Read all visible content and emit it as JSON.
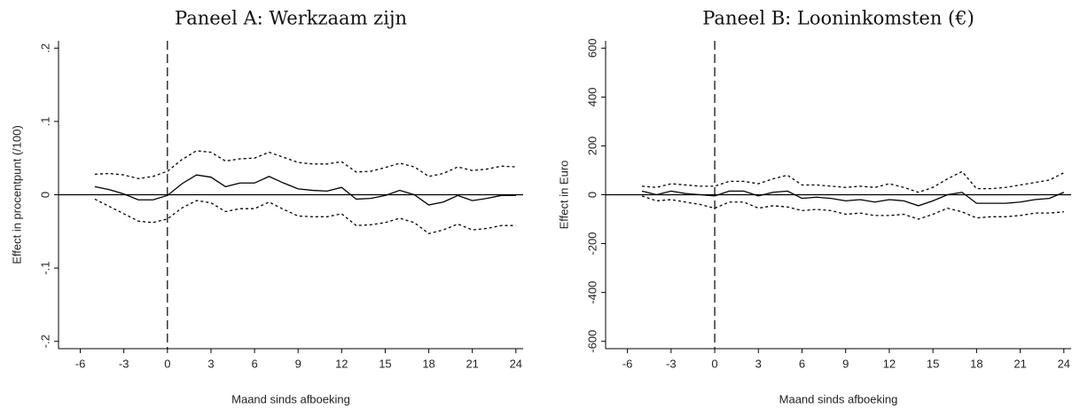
{
  "chart_data": [
    {
      "type": "line",
      "title": "Paneel A: Werkzaam zijn",
      "xlabel": "Maand sinds afboeking",
      "ylabel": "Effect in procentpunt (/100)",
      "x": [
        -5,
        -4,
        -3,
        -2,
        -1,
        0,
        1,
        2,
        3,
        4,
        5,
        6,
        7,
        8,
        9,
        10,
        11,
        12,
        13,
        14,
        15,
        16,
        17,
        18,
        19,
        20,
        21,
        22,
        23,
        24
      ],
      "series": [
        {
          "color": "#000000",
          "dash": "solid",
          "values": [
            0.011,
            0.007,
            0.001,
            -0.007,
            -0.007,
            -0.001,
            0.015,
            0.027,
            0.024,
            0.011,
            0.016,
            0.016,
            0.025,
            0.016,
            0.008,
            0.006,
            0.005,
            0.01,
            -0.006,
            -0.005,
            -0.001,
            0.006,
            0,
            -0.014,
            -0.01,
            -0.001,
            -0.008,
            -0.005,
            -0.001,
            -0.001
          ]
        },
        {
          "color": "#000000",
          "dash": "dotted",
          "values": [
            0.028,
            0.029,
            0.027,
            0.022,
            0.025,
            0.032,
            0.048,
            0.06,
            0.058,
            0.046,
            0.049,
            0.05,
            0.058,
            0.051,
            0.044,
            0.042,
            0.042,
            0.045,
            0.031,
            0.032,
            0.037,
            0.043,
            0.038,
            0.025,
            0.029,
            0.038,
            0.033,
            0.035,
            0.039,
            0.038
          ]
        },
        {
          "color": "#000000",
          "dash": "dotted",
          "values": [
            -0.006,
            -0.016,
            -0.026,
            -0.036,
            -0.038,
            -0.033,
            -0.018,
            -0.008,
            -0.011,
            -0.023,
            -0.019,
            -0.019,
            -0.01,
            -0.02,
            -0.029,
            -0.03,
            -0.03,
            -0.026,
            -0.042,
            -0.041,
            -0.038,
            -0.032,
            -0.038,
            -0.053,
            -0.048,
            -0.04,
            -0.048,
            -0.046,
            -0.042,
            -0.042
          ]
        }
      ],
      "xlim": [
        -7.5,
        24.5
      ],
      "xticks": [
        -6,
        -3,
        0,
        3,
        6,
        9,
        12,
        15,
        18,
        21,
        24
      ],
      "ylim": [
        -0.21,
        0.21
      ],
      "yticks": [
        {
          "value": -0.2,
          "label": "-.2"
        },
        {
          "value": -0.1,
          "label": "-.1"
        },
        0,
        {
          "value": 0.1,
          "label": ".1"
        },
        {
          "value": 0.2,
          "label": ".2"
        }
      ],
      "hline": 0,
      "vline": 0
    },
    {
      "type": "line",
      "title": "Paneel B: Looninkomsten (€)",
      "xlabel": "Maand sinds afboeking",
      "ylabel": "Effect in Euro",
      "x": [
        -5,
        -4,
        -3,
        -2,
        -1,
        0,
        1,
        2,
        3,
        4,
        5,
        6,
        7,
        8,
        9,
        10,
        11,
        12,
        13,
        14,
        15,
        16,
        17,
        18,
        19,
        20,
        21,
        22,
        23,
        24
      ],
      "series": [
        {
          "color": "#000000",
          "dash": "solid",
          "values": [
            15,
            0,
            15,
            5,
            0,
            -5,
            15,
            15,
            -5,
            10,
            15,
            -15,
            -10,
            -15,
            -25,
            -20,
            -30,
            -20,
            -25,
            -45,
            -25,
            0,
            10,
            -35,
            -35,
            -35,
            -30,
            -20,
            -15,
            10
          ]
        },
        {
          "color": "#000000",
          "dash": "dotted",
          "values": [
            35,
            30,
            45,
            40,
            35,
            35,
            55,
            55,
            45,
            65,
            80,
            40,
            40,
            35,
            30,
            35,
            30,
            45,
            30,
            10,
            30,
            65,
            95,
            25,
            25,
            30,
            40,
            50,
            60,
            90
          ]
        },
        {
          "color": "#000000",
          "dash": "dotted",
          "values": [
            -5,
            -25,
            -20,
            -30,
            -40,
            -55,
            -30,
            -30,
            -55,
            -45,
            -50,
            -65,
            -60,
            -65,
            -80,
            -75,
            -85,
            -85,
            -80,
            -100,
            -80,
            -55,
            -70,
            -95,
            -90,
            -90,
            -85,
            -75,
            -75,
            -70
          ]
        }
      ],
      "xlim": [
        -7.5,
        24.5
      ],
      "xticks": [
        -6,
        -3,
        0,
        3,
        6,
        9,
        12,
        15,
        18,
        21,
        24
      ],
      "ylim": [
        -630,
        630
      ],
      "yticks": [
        -600,
        -400,
        -200,
        0,
        200,
        400,
        600
      ],
      "hline": 0,
      "vline": 0
    }
  ]
}
